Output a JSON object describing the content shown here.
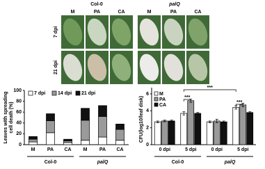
{
  "photo_panel": {
    "groups": [
      "Col-0",
      "palQ"
    ],
    "columns": [
      "M",
      "PA",
      "CA",
      "M",
      "PA",
      "CA"
    ],
    "rows": [
      "7 dpi",
      "21 dpi"
    ]
  },
  "chart_data": [
    {
      "type": "stacked-bar",
      "ylabel": [
        "Leaves with spreading",
        "cell death (%)"
      ],
      "categories": [
        "M",
        "PA",
        "CA",
        "M",
        "PA",
        "CA"
      ],
      "groups": [
        "Col-0",
        "palQ"
      ],
      "series": [
        {
          "name": "7 dpi",
          "color": "#ffffff",
          "values": [
            5,
            22,
            4,
            8,
            14,
            8
          ]
        },
        {
          "name": "14 dpi",
          "color": "#9a9a9a",
          "values": [
            5,
            22,
            3,
            37,
            38,
            20
          ]
        },
        {
          "name": "21 dpi",
          "color": "#111111",
          "values": [
            5,
            13,
            3,
            22,
            20,
            10
          ]
        }
      ],
      "ylim": [
        0,
        100
      ],
      "yticks": [
        0,
        20,
        40,
        60,
        80,
        100
      ],
      "legend": "top"
    },
    {
      "type": "grouped-bar",
      "ylabel": "CFU(log10/leaf disk)",
      "categories": [
        "0 dpi",
        "5 dpi",
        "0 dpi",
        "5 dpi"
      ],
      "groups": [
        "Col-0",
        "palQ"
      ],
      "series": [
        {
          "name": "M",
          "color": "#ffffff",
          "values": [
            2.7,
            3.7,
            2.7,
            4.4
          ],
          "errors": [
            0.1,
            0.2,
            0.1,
            0.2
          ]
        },
        {
          "name": "PA",
          "color": "#9a9a9a",
          "values": [
            2.8,
            5.2,
            2.8,
            4.7
          ],
          "errors": [
            0.1,
            0.2,
            0.2,
            0.2
          ]
        },
        {
          "name": "CA",
          "color": "#111111",
          "values": [
            2.8,
            3.7,
            2.7,
            3.8
          ],
          "errors": [
            0.1,
            0.1,
            0.1,
            0.1
          ]
        }
      ],
      "ylim": [
        0,
        6
      ],
      "yticks": [
        0,
        2,
        4,
        6
      ],
      "legend": "top-left",
      "annotations": [
        "***",
        "***",
        "***"
      ]
    }
  ]
}
